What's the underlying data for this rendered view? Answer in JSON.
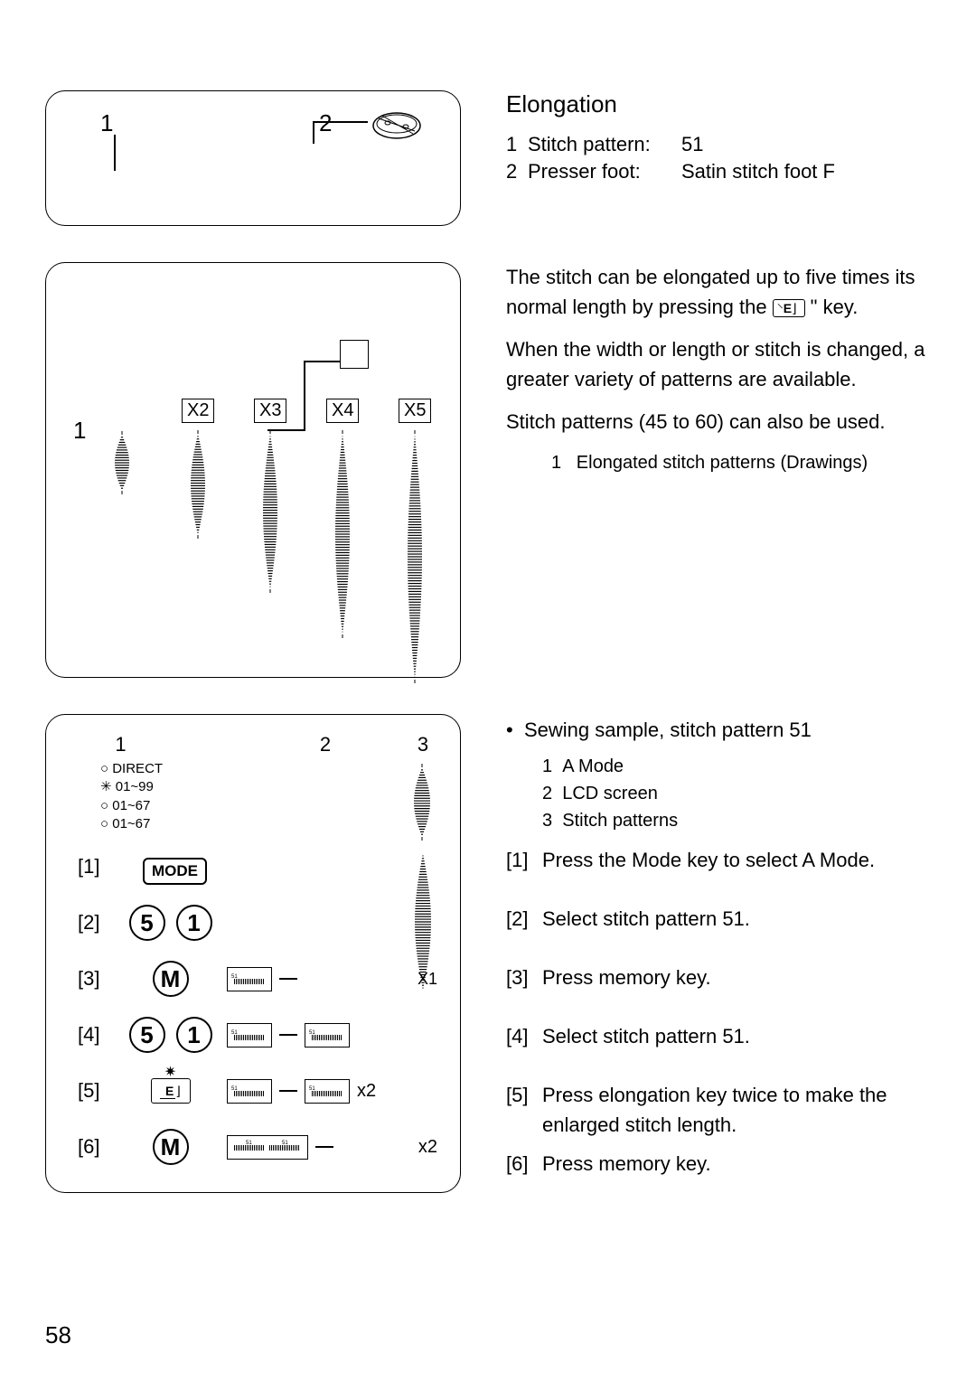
{
  "page_number": "58",
  "section_title": "Elongation",
  "specs": [
    {
      "num": "1",
      "label": "Stitch pattern:",
      "value": "51"
    },
    {
      "num": "2",
      "label": "Presser foot:",
      "value": "Satin stitch foot F"
    }
  ],
  "panel1": {
    "callout1": "1",
    "callout2": "2"
  },
  "panel2": {
    "callout1": "1",
    "multipliers": [
      "X2",
      "X3",
      "X4",
      "X5"
    ],
    "stitch_heights": [
      70,
      120,
      180,
      230,
      280
    ]
  },
  "intro_paragraphs": {
    "p1_a": "The stitch can be elongated up to five times its normal length by pressing the ",
    "p1_b": " \" key.",
    "p2": "When the width or length or stitch is changed, a greater variety of patterns are available.",
    "p3": "Stitch patterns (45 to 60) can also be used.",
    "sub_num": "1",
    "sub_text": "Elongated stitch patterns (Drawings)"
  },
  "panel3": {
    "top_nums": {
      "n1": "1",
      "n2": "2",
      "n3": "3"
    },
    "mode_lines": [
      "DIRECT",
      "01~99",
      "01~67",
      "01~67"
    ],
    "mode_bullets": [
      "○",
      "✳",
      "○",
      "○"
    ],
    "mode_btn": "MODE",
    "steps": [
      {
        "label": "[1]"
      },
      {
        "label": "[2]",
        "keys": [
          "5",
          "1"
        ]
      },
      {
        "label": "[3]",
        "keys": [
          "M"
        ],
        "lcd_mult": "X1",
        "lcd_single": true
      },
      {
        "label": "[4]",
        "keys": [
          "5",
          "1"
        ],
        "lcd_double": true
      },
      {
        "label": "[5]",
        "elong_key": true,
        "lcd_double": true,
        "lcd_mult": "x2"
      },
      {
        "label": "[6]",
        "keys": [
          "M"
        ],
        "lcd_combined": true,
        "lcd_mult": "x2"
      }
    ]
  },
  "right_lower": {
    "bullet": "Sewing sample, stitch pattern 51",
    "subs": [
      {
        "n": "1",
        "t": "A Mode"
      },
      {
        "n": "2",
        "t": "LCD screen"
      },
      {
        "n": "3",
        "t": "Stitch patterns"
      }
    ],
    "steps": [
      {
        "n": "[1]",
        "t": "Press the Mode key to select A Mode."
      },
      {
        "n": "[2]",
        "t": "Select stitch pattern 51."
      },
      {
        "n": "[3]",
        "t": "Press memory key."
      },
      {
        "n": "[4]",
        "t": "Select stitch pattern 51."
      },
      {
        "n": "[5]",
        "t": "Press elongation key twice to make the enlarged stitch length."
      },
      {
        "n": "[6]",
        "t": "Press memory key."
      }
    ]
  },
  "elong_key_label": "E",
  "colors": {
    "text": "#000000",
    "bg": "#ffffff"
  }
}
